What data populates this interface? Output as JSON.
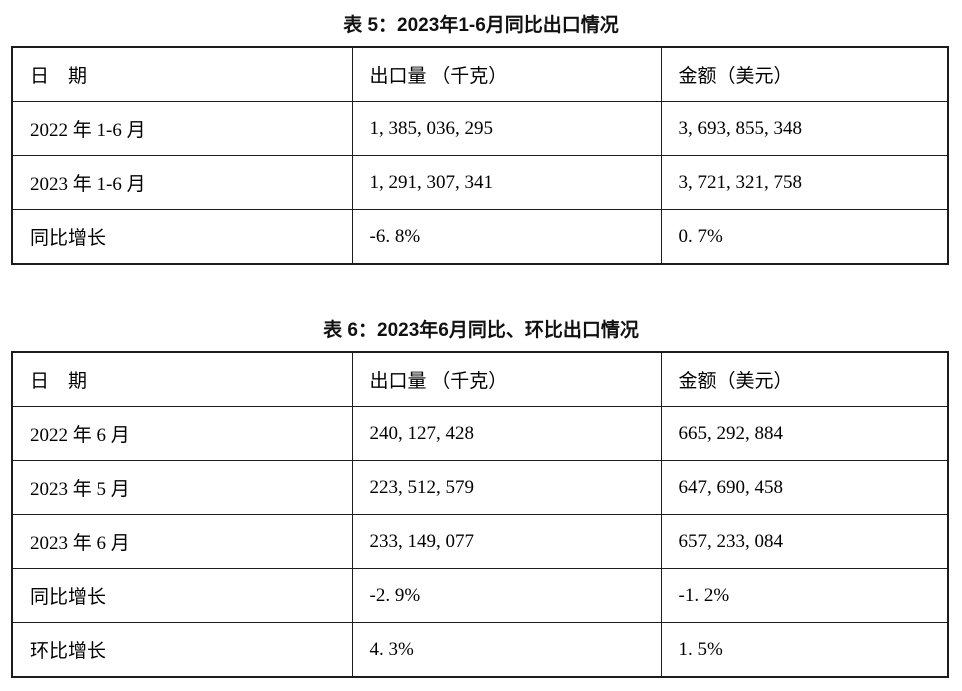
{
  "document": {
    "tables": [
      {
        "title": "表 5：2023年1-6月同比出口情况",
        "columns": [
          "日　期",
          "出口量 （千克）",
          "金额（美元）"
        ],
        "rows": [
          [
            "2022 年 1-6 月",
            "1, 385, 036, 295",
            "3, 693, 855, 348"
          ],
          [
            "2023 年 1-6 月",
            "1, 291, 307, 341",
            "3, 721, 321, 758"
          ],
          [
            "同比增长",
            "-6. 8%",
            "0. 7%"
          ]
        ]
      },
      {
        "title": "表 6：2023年6月同比、环比出口情况",
        "columns": [
          "日　期",
          "出口量 （千克）",
          "金额（美元）"
        ],
        "rows": [
          [
            "2022 年 6 月",
            "240, 127, 428",
            "665, 292, 884"
          ],
          [
            "2023 年 5 月",
            "223, 512, 579",
            "647, 690, 458"
          ],
          [
            "2023 年 6 月",
            "233, 149, 077",
            "657, 233, 084"
          ],
          [
            "同比增长",
            "-2. 9%",
            "-1. 2%"
          ],
          [
            "环比增长",
            "4. 3%",
            "1. 5%"
          ]
        ]
      }
    ]
  }
}
